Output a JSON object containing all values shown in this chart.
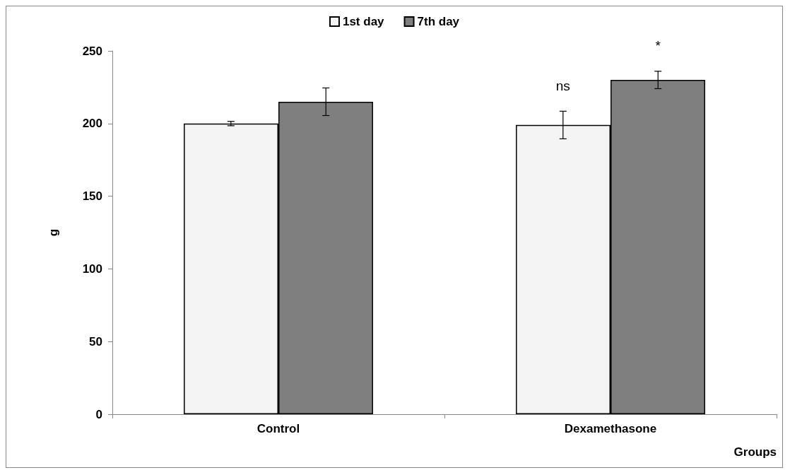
{
  "chart_data": {
    "type": "bar",
    "ylabel": "g",
    "xlabel": "Groups",
    "categories": [
      "Control",
      "Dexamethasone"
    ],
    "series": [
      {
        "name": "1st day",
        "color": "#f4f4f4",
        "values": [
          200,
          199
        ],
        "errors": [
          1.5,
          9.5
        ]
      },
      {
        "name": "7th day",
        "color": "#7f7f7f",
        "values": [
          215,
          230
        ],
        "errors": [
          9.5,
          6
        ]
      }
    ],
    "ylim": [
      0,
      250
    ],
    "yticks": [
      0,
      50,
      100,
      150,
      200,
      250
    ],
    "grid": false,
    "legend": "top",
    "annotations": [
      "ns",
      "*"
    ]
  }
}
